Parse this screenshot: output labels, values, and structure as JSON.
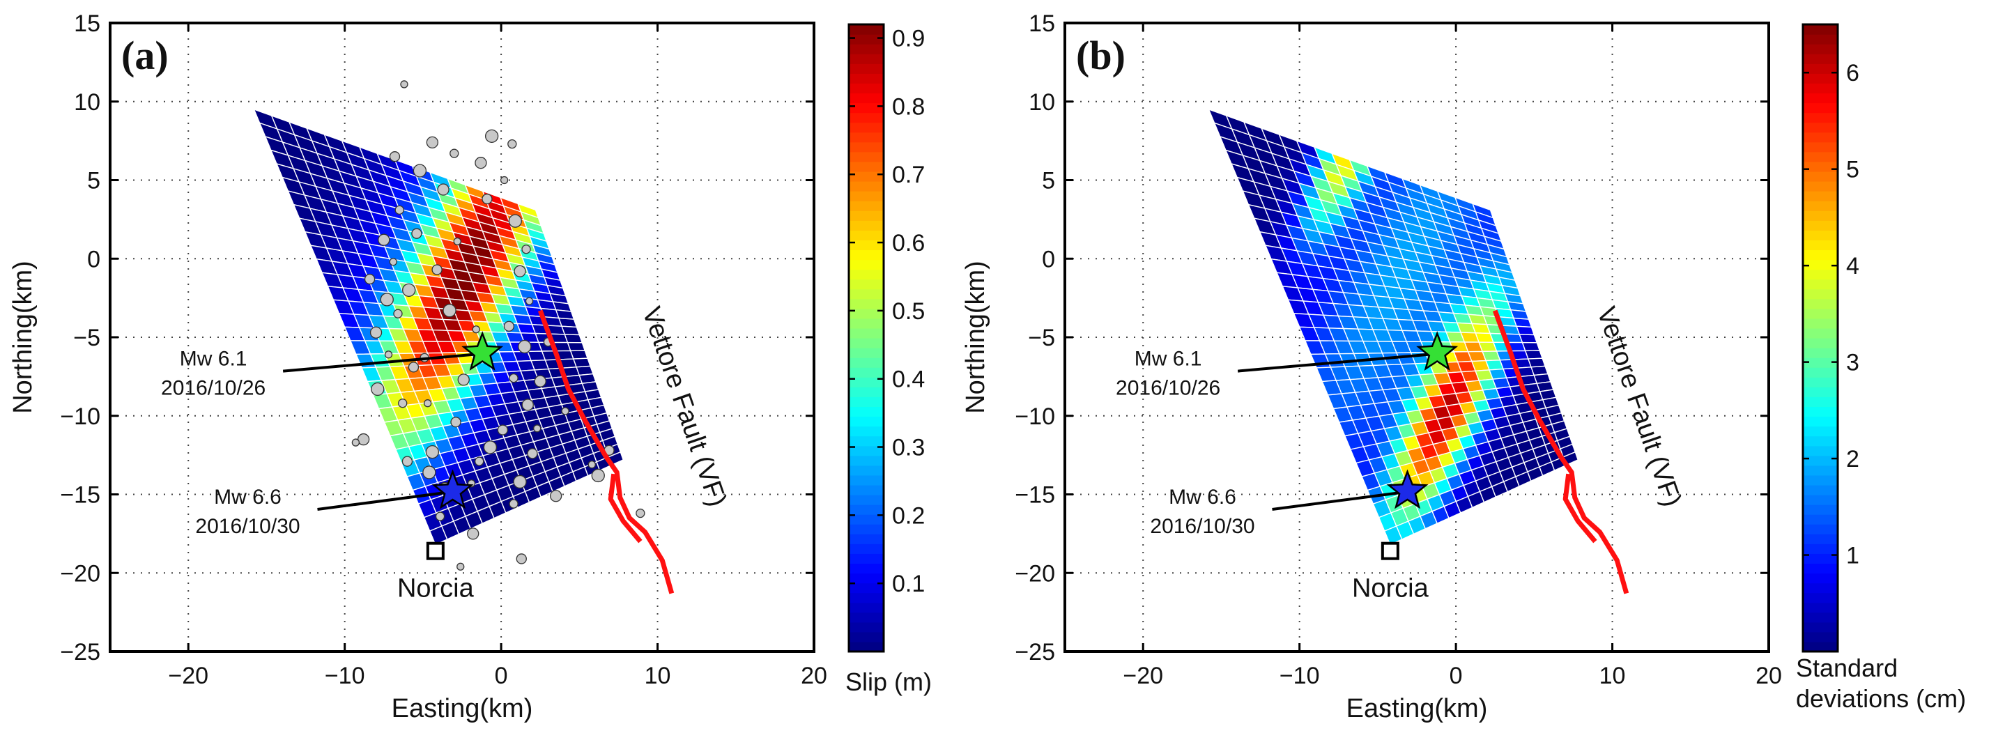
{
  "chart_data": [
    {
      "type": "heatmap",
      "panel_label": "(a)",
      "xlabel": "Easting(km)",
      "ylabel": "Northing(km)",
      "xlim": [
        -25,
        20
      ],
      "ylim": [
        -25,
        15
      ],
      "xticks": [
        -20,
        -10,
        0,
        10,
        20
      ],
      "yticks": [
        -25,
        -20,
        -15,
        -10,
        -5,
        0,
        5,
        10,
        15
      ],
      "xtick_labels": [
        "−20",
        "−10",
        "0",
        "10",
        "20"
      ],
      "ytick_labels": [
        "−25",
        "−20",
        "−15",
        "−10",
        "−5",
        "0",
        "5",
        "10",
        "15"
      ],
      "grid": true,
      "fault_plane_corners": [
        [
          -15.8,
          9.5
        ],
        [
          2.2,
          3.1
        ],
        [
          7.8,
          -12.8
        ],
        [
          -4.2,
          -18.2
        ]
      ],
      "grid_cells": [
        16,
        32
      ],
      "colorbar": {
        "min": 0.0,
        "max": 0.92,
        "ticks": [
          0.1,
          0.2,
          0.3,
          0.4,
          0.5,
          0.6,
          0.7,
          0.8,
          0.9
        ],
        "tick_labels": [
          "0.1",
          "0.2",
          "0.3",
          "0.4",
          "0.5",
          "0.6",
          "0.7",
          "0.8",
          "0.9"
        ],
        "label": "Slip (m)"
      },
      "slip_patches": [
        {
          "center": [
            -2.2,
            -1.3
          ],
          "sigma_along": 6.5,
          "sigma_across": 2.4,
          "peak": 0.9
        },
        {
          "center": [
            -5.0,
            2.0
          ],
          "sigma_along": 8.0,
          "sigma_across": 3.4,
          "peak": 0.12
        }
      ],
      "aftershocks": [
        [
          -6.2,
          11.1
        ],
        [
          -6.8,
          6.5
        ],
        [
          -5.2,
          5.6
        ],
        [
          -6.5,
          3.1
        ],
        [
          -7.5,
          1.2
        ],
        [
          -6.9,
          -0.2
        ],
        [
          -8.4,
          -1.3
        ],
        [
          -7.3,
          -2.6
        ],
        [
          -6.6,
          -3.5
        ],
        [
          -8.0,
          -4.7
        ],
        [
          -7.2,
          -6.1
        ],
        [
          -5.6,
          -6.9
        ],
        [
          -7.9,
          -8.3
        ],
        [
          -6.3,
          -9.2
        ],
        [
          -8.8,
          -11.5
        ],
        [
          -9.3,
          -11.7
        ],
        [
          -6.0,
          -12.9
        ],
        [
          -4.6,
          -13.6
        ],
        [
          -3.9,
          -16.4
        ],
        [
          -1.8,
          -17.5
        ],
        [
          -2.6,
          -19.6
        ],
        [
          1.3,
          -19.1
        ],
        [
          -0.6,
          7.8
        ],
        [
          0.7,
          7.3
        ],
        [
          -1.3,
          6.1
        ],
        [
          0.2,
          5.0
        ],
        [
          -0.9,
          3.8
        ],
        [
          0.9,
          2.4
        ],
        [
          1.6,
          0.6
        ],
        [
          1.2,
          -0.8
        ],
        [
          1.8,
          -2.7
        ],
        [
          0.5,
          -4.3
        ],
        [
          1.5,
          -5.6
        ],
        [
          0.8,
          -7.6
        ],
        [
          1.7,
          -9.3
        ],
        [
          2.3,
          -10.8
        ],
        [
          2.0,
          -12.4
        ],
        [
          1.2,
          -14.2
        ],
        [
          0.8,
          -15.6
        ],
        [
          3.5,
          -15.1
        ],
        [
          5.8,
          -13.1
        ],
        [
          6.9,
          -12.2
        ],
        [
          6.2,
          -13.8
        ],
        [
          8.9,
          -16.2
        ],
        [
          -3.7,
          4.4
        ],
        [
          -2.8,
          1.1
        ],
        [
          -4.1,
          -0.7
        ],
        [
          -3.3,
          -3.3
        ],
        [
          -4.9,
          -6.3
        ],
        [
          -2.4,
          -7.7
        ],
        [
          -4.7,
          -9.2
        ],
        [
          -2.9,
          -10.4
        ],
        [
          -4.4,
          -12.3
        ],
        [
          -1.4,
          -12.9
        ],
        [
          -3.6,
          -14.6
        ],
        [
          -1.9,
          -14.3
        ],
        [
          -5.4,
          1.6
        ],
        [
          -5.9,
          -2.0
        ],
        [
          -3.0,
          6.7
        ],
        [
          -4.4,
          7.4
        ],
        [
          -1.6,
          -4.5
        ],
        [
          0.1,
          -10.9
        ],
        [
          -0.7,
          -12.0
        ],
        [
          3.0,
          -5.3
        ],
        [
          2.5,
          -7.8
        ],
        [
          4.1,
          -9.7
        ]
      ],
      "events": [
        {
          "label": "Mw 6.1",
          "date": "2016/10/26",
          "position": [
            -1.2,
            -6.0
          ],
          "color": "#35e035"
        },
        {
          "label": "Mw 6.6",
          "date": "2016/10/30",
          "position": [
            -3.1,
            -14.8
          ],
          "color": "#1c2ae8"
        }
      ],
      "town": {
        "label": "Norcia",
        "position": [
          -4.2,
          -18.6
        ]
      },
      "fault": {
        "label": "Vettore Fault (VF)",
        "color": "#ff1010",
        "trace": [
          [
            2.5,
            -3.3
          ],
          [
            3.5,
            -6.0
          ],
          [
            4.3,
            -8.3
          ],
          [
            5.3,
            -10.2
          ],
          [
            6.7,
            -12.6
          ],
          [
            7.4,
            -13.6
          ],
          [
            7.6,
            -15.2
          ],
          [
            8.2,
            -16.5
          ],
          [
            9.2,
            -17.4
          ],
          [
            10.3,
            -19.2
          ],
          [
            10.9,
            -21.3
          ]
        ],
        "branch": [
          [
            7.2,
            -13.7
          ],
          [
            7.0,
            -15.3
          ],
          [
            7.8,
            -16.7
          ],
          [
            8.9,
            -18.0
          ]
        ]
      }
    },
    {
      "type": "heatmap",
      "panel_label": "(b)",
      "xlabel": "Easting(km)",
      "ylabel": "Northing(km)",
      "xlim": [
        -25,
        20
      ],
      "ylim": [
        -25,
        15
      ],
      "xticks": [
        -20,
        -10,
        0,
        10,
        20
      ],
      "yticks": [
        -25,
        -20,
        -15,
        -10,
        -5,
        0,
        5,
        10,
        15
      ],
      "xtick_labels": [
        "−20",
        "−10",
        "0",
        "10",
        "20"
      ],
      "ytick_labels": [
        "−25",
        "−20",
        "−15",
        "−10",
        "−5",
        "0",
        "5",
        "10",
        "15"
      ],
      "grid": true,
      "fault_plane_corners": [
        [
          -15.8,
          9.5
        ],
        [
          2.2,
          3.1
        ],
        [
          7.8,
          -12.8
        ],
        [
          -4.2,
          -18.2
        ]
      ],
      "grid_cells": [
        16,
        32
      ],
      "colorbar": {
        "min": 0.0,
        "max": 6.5,
        "ticks": [
          1,
          2,
          3,
          4,
          5,
          6
        ],
        "tick_labels": [
          "1",
          "2",
          "3",
          "4",
          "5",
          "6"
        ],
        "label_lines": [
          "Standard",
          "deviations (cm)"
        ]
      },
      "std_patches": [
        {
          "center": [
            -0.6,
            -9.8
          ],
          "sigma_along": 4.2,
          "sigma_across": 1.5,
          "peak": 5.9
        },
        {
          "center": [
            -7.0,
            6.5
          ],
          "sigma_along": 2.8,
          "sigma_across": 1.2,
          "peak": 3.9
        },
        {
          "center": [
            -3.5,
            -1.0
          ],
          "sigma_along": 8.5,
          "sigma_across": 3.5,
          "peak": 1.9
        }
      ],
      "events": [
        {
          "label": "Mw 6.1",
          "date": "2016/10/26",
          "position": [
            -1.2,
            -6.0
          ],
          "color": "#35e035"
        },
        {
          "label": "Mw 6.6",
          "date": "2016/10/30",
          "position": [
            -3.1,
            -14.8
          ],
          "color": "#1c2ae8"
        }
      ],
      "town": {
        "label": "Norcia",
        "position": [
          -4.2,
          -18.6
        ]
      },
      "fault": {
        "label": "Vettore Fault (VF)",
        "color": "#ff1010",
        "trace": [
          [
            2.5,
            -3.3
          ],
          [
            3.5,
            -6.0
          ],
          [
            4.3,
            -8.3
          ],
          [
            5.3,
            -10.2
          ],
          [
            6.7,
            -12.6
          ],
          [
            7.4,
            -13.6
          ],
          [
            7.6,
            -15.2
          ],
          [
            8.2,
            -16.5
          ],
          [
            9.2,
            -17.4
          ],
          [
            10.3,
            -19.2
          ],
          [
            10.9,
            -21.3
          ]
        ],
        "branch": [
          [
            7.2,
            -13.7
          ],
          [
            7.0,
            -15.3
          ],
          [
            7.8,
            -16.7
          ],
          [
            8.9,
            -18.0
          ]
        ]
      }
    }
  ]
}
